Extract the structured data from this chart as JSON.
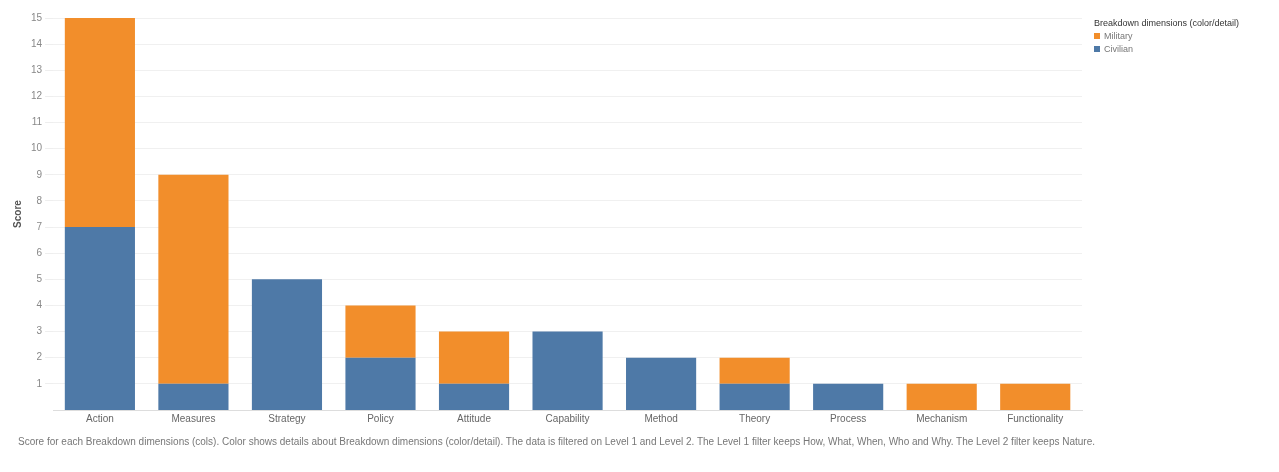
{
  "chart_data": {
    "type": "bar",
    "stacked": true,
    "ylabel": "Score",
    "legend_title": "Breakdown dimensions (color/detail)",
    "legend": "top right",
    "grid": "y",
    "categories": [
      "Action",
      "Measures",
      "Strategy",
      "Policy",
      "Attitude",
      "Capability",
      "Method",
      "Theory",
      "Process",
      "Mechanism",
      "Functionality"
    ],
    "series": [
      {
        "name": "Civilian",
        "color": "#4e79a7",
        "values": [
          7,
          1,
          5,
          2,
          1,
          3,
          2,
          1,
          1,
          null,
          null
        ]
      },
      {
        "name": "Military",
        "color": "#f28e2b",
        "values": [
          8,
          8,
          null,
          2,
          2,
          null,
          null,
          1,
          null,
          1,
          1
        ]
      }
    ],
    "ylim": [
      0,
      15
    ],
    "yticks": [
      1,
      2,
      3,
      4,
      5,
      6,
      7,
      8,
      9,
      10,
      11,
      12,
      13,
      14,
      15
    ],
    "annotations": [
      "Score for each Breakdown dimensions (cols).  Color shows details about Breakdown dimensions (color/detail). The data is filtered on Level 1 and Level 2. The Level 1 filter keeps How, What, When, Who and Why. The Level 2 filter keeps  Nature."
    ]
  }
}
